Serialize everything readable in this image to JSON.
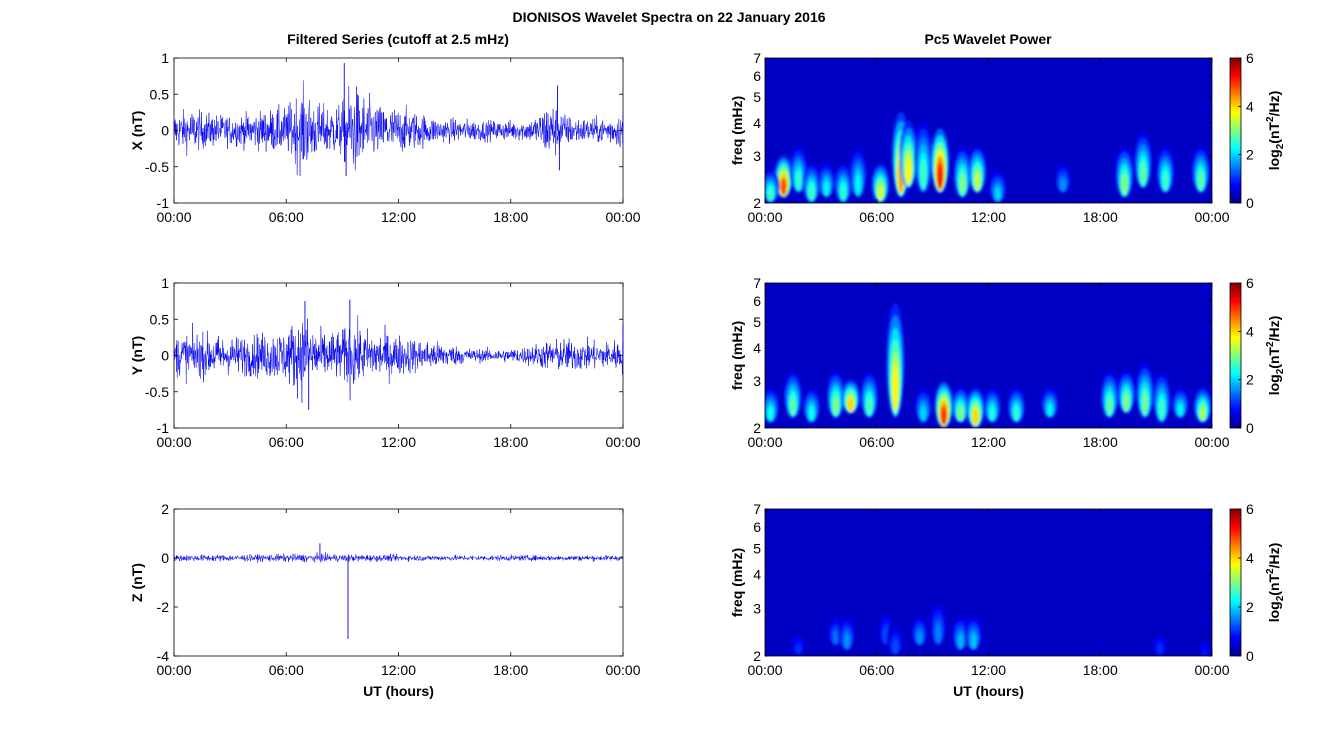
{
  "figure": {
    "title": "DIONISOS Wavelet Spectra on 22 January 2016",
    "left_title": "Filtered Series (cutoff at 2.5 mHz)",
    "right_title": "Pc5 Wavelet Power"
  },
  "colors": {
    "trace": "#0000ee",
    "axes": "#000000",
    "background": "#ffffff"
  },
  "chart_data": [
    {
      "type": "line",
      "id": "X",
      "ylabel": "X (nT)",
      "xlabel": "",
      "xticks": [
        "00:00",
        "06:00",
        "12:00",
        "18:00",
        "00:00"
      ],
      "xlim_hours": [
        0,
        24
      ],
      "ylim": [
        -1,
        1
      ],
      "yticks": [
        -1,
        -0.5,
        0,
        0.5,
        1
      ],
      "ytick_labels": [
        "-1",
        "-0.5",
        "0",
        "0.5",
        "1"
      ],
      "amplitude_envelope": [
        [
          0,
          0.22
        ],
        [
          1,
          0.25
        ],
        [
          2,
          0.2
        ],
        [
          3,
          0.18
        ],
        [
          4,
          0.2
        ],
        [
          5,
          0.25
        ],
        [
          6,
          0.28
        ],
        [
          6.6,
          0.45
        ],
        [
          7,
          0.5
        ],
        [
          7.5,
          0.35
        ],
        [
          8,
          0.3
        ],
        [
          9,
          0.33
        ],
        [
          9.5,
          0.6
        ],
        [
          10,
          0.45
        ],
        [
          11,
          0.3
        ],
        [
          12,
          0.28
        ],
        [
          13,
          0.22
        ],
        [
          14,
          0.15
        ],
        [
          15,
          0.14
        ],
        [
          16,
          0.13
        ],
        [
          17,
          0.12
        ],
        [
          18,
          0.12
        ],
        [
          19,
          0.13
        ],
        [
          19.5,
          0.2
        ],
        [
          20,
          0.35
        ],
        [
          20.5,
          0.3
        ],
        [
          21,
          0.18
        ],
        [
          22,
          0.15
        ],
        [
          23,
          0.15
        ],
        [
          24,
          0.22
        ]
      ],
      "notable_points": [
        {
          "time_hours": 9.1,
          "value": 0.93
        },
        {
          "time_hours": 9.2,
          "value": -0.63
        },
        {
          "time_hours": 20.5,
          "value": 0.62
        },
        {
          "time_hours": 20.6,
          "value": -0.55
        }
      ]
    },
    {
      "type": "line",
      "id": "Y",
      "ylabel": "Y (nT)",
      "xlabel": "",
      "xticks": [
        "00:00",
        "06:00",
        "12:00",
        "18:00",
        "00:00"
      ],
      "xlim_hours": [
        0,
        24
      ],
      "ylim": [
        -1,
        1
      ],
      "yticks": [
        -1,
        -0.5,
        0,
        0.5,
        1
      ],
      "ytick_labels": [
        "-1",
        "-0.5",
        "0",
        "0.5",
        "1"
      ],
      "amplitude_envelope": [
        [
          0,
          0.25
        ],
        [
          1,
          0.28
        ],
        [
          2,
          0.25
        ],
        [
          3,
          0.22
        ],
        [
          4,
          0.25
        ],
        [
          5,
          0.28
        ],
        [
          6,
          0.32
        ],
        [
          6.6,
          0.45
        ],
        [
          7,
          0.5
        ],
        [
          7.5,
          0.35
        ],
        [
          8,
          0.28
        ],
        [
          9,
          0.3
        ],
        [
          9.4,
          0.45
        ],
        [
          10,
          0.32
        ],
        [
          11,
          0.28
        ],
        [
          12,
          0.25
        ],
        [
          13,
          0.2
        ],
        [
          14,
          0.17
        ],
        [
          15,
          0.12
        ],
        [
          16,
          0.08
        ],
        [
          17,
          0.08
        ],
        [
          18,
          0.08
        ],
        [
          19,
          0.12
        ],
        [
          20,
          0.18
        ],
        [
          21,
          0.2
        ],
        [
          22,
          0.18
        ],
        [
          23,
          0.16
        ],
        [
          24,
          0.22
        ]
      ],
      "notable_points": [
        {
          "time_hours": 7.0,
          "value": 0.75
        },
        {
          "time_hours": 7.2,
          "value": -0.75
        },
        {
          "time_hours": 9.4,
          "value": 0.77
        },
        {
          "time_hours": 24.0,
          "value": 0.42
        }
      ]
    },
    {
      "type": "line",
      "id": "Z",
      "ylabel": "Z (nT)",
      "xlabel": "UT (hours)",
      "xticks": [
        "00:00",
        "06:00",
        "12:00",
        "18:00",
        "00:00"
      ],
      "xlim_hours": [
        0,
        24
      ],
      "ylim": [
        -4,
        2
      ],
      "yticks": [
        -4,
        -2,
        0,
        2
      ],
      "ytick_labels": [
        "-4",
        "-2",
        "0",
        "2"
      ],
      "amplitude_envelope": [
        [
          0,
          0.12
        ],
        [
          4,
          0.12
        ],
        [
          7,
          0.15
        ],
        [
          10,
          0.13
        ],
        [
          14,
          0.1
        ],
        [
          18,
          0.1
        ],
        [
          24,
          0.1
        ]
      ],
      "notable_points": [
        {
          "time_hours": 7.8,
          "value": 0.6
        },
        {
          "time_hours": 9.3,
          "value": -3.3
        }
      ]
    },
    {
      "type": "heatmap",
      "id": "X-power",
      "title": "Pc5 Wavelet Power",
      "ylabel": "freq (mHz)",
      "xlabel": "",
      "xticks": [
        "00:00",
        "06:00",
        "12:00",
        "18:00",
        "00:00"
      ],
      "xlim_hours": [
        0,
        24
      ],
      "yscale": "log",
      "ylim_mHz": [
        2,
        7
      ],
      "yticks": [
        "2",
        "3",
        "4",
        "5",
        "6",
        "7"
      ],
      "colorbar": {
        "label": "log2(nT²/Hz)",
        "range": [
          0,
          6
        ],
        "ticks": [
          "0",
          "2",
          "4",
          "6"
        ],
        "colormap": "jet"
      },
      "blobs": [
        {
          "t": 1.0,
          "f": 2.4,
          "peak": 4.8,
          "extent_mHz": 3.2
        },
        {
          "t": 0.3,
          "f": 2.3,
          "peak": 2.6,
          "extent_mHz": 2.8
        },
        {
          "t": 1.8,
          "f": 2.5,
          "peak": 2.5,
          "extent_mHz": 3.5
        },
        {
          "t": 2.5,
          "f": 2.3,
          "peak": 2.6,
          "extent_mHz": 3.0
        },
        {
          "t": 3.3,
          "f": 2.4,
          "peak": 2.2,
          "extent_mHz": 3.0
        },
        {
          "t": 4.2,
          "f": 2.3,
          "peak": 2.5,
          "extent_mHz": 3.0
        },
        {
          "t": 5.0,
          "f": 2.4,
          "peak": 2.2,
          "extent_mHz": 3.5
        },
        {
          "t": 6.2,
          "f": 2.3,
          "peak": 3.5,
          "extent_mHz": 3.0
        },
        {
          "t": 7.3,
          "f": 2.4,
          "peak": 4.3,
          "extent_mHz": 5.0
        },
        {
          "t": 7.7,
          "f": 2.6,
          "peak": 3.8,
          "extent_mHz": 4.5
        },
        {
          "t": 8.5,
          "f": 2.5,
          "peak": 2.6,
          "extent_mHz": 4.5
        },
        {
          "t": 9.4,
          "f": 2.5,
          "peak": 5.2,
          "extent_mHz": 4.2
        },
        {
          "t": 10.6,
          "f": 2.4,
          "peak": 3.0,
          "extent_mHz": 3.5
        },
        {
          "t": 11.4,
          "f": 2.5,
          "peak": 3.4,
          "extent_mHz": 3.5
        },
        {
          "t": 12.5,
          "f": 2.3,
          "peak": 2.0,
          "extent_mHz": 2.8
        },
        {
          "t": 16.0,
          "f": 2.5,
          "peak": 1.6,
          "extent_mHz": 3.0
        },
        {
          "t": 19.3,
          "f": 2.4,
          "peak": 3.0,
          "extent_mHz": 3.5
        },
        {
          "t": 20.3,
          "f": 2.6,
          "peak": 2.8,
          "extent_mHz": 4.0
        },
        {
          "t": 21.5,
          "f": 2.5,
          "peak": 2.6,
          "extent_mHz": 3.5
        },
        {
          "t": 23.4,
          "f": 2.5,
          "peak": 2.8,
          "extent_mHz": 3.5
        }
      ]
    },
    {
      "type": "heatmap",
      "id": "Y-power",
      "title": "",
      "ylabel": "freq (mHz)",
      "xlabel": "",
      "xticks": [
        "00:00",
        "06:00",
        "12:00",
        "18:00",
        "00:00"
      ],
      "xlim_hours": [
        0,
        24
      ],
      "yscale": "log",
      "ylim_mHz": [
        2,
        7
      ],
      "yticks": [
        "2",
        "3",
        "4",
        "5",
        "6",
        "7"
      ],
      "colorbar": {
        "label": "log2(nT²/Hz)",
        "range": [
          0,
          6
        ],
        "ticks": [
          "0",
          "2",
          "4",
          "6"
        ],
        "colormap": "jet"
      },
      "blobs": [
        {
          "t": 0.3,
          "f": 2.4,
          "peak": 2.3,
          "extent_mHz": 3.0
        },
        {
          "t": 1.5,
          "f": 2.5,
          "peak": 2.8,
          "extent_mHz": 3.5
        },
        {
          "t": 2.5,
          "f": 2.4,
          "peak": 2.3,
          "extent_mHz": 3.0
        },
        {
          "t": 3.8,
          "f": 2.5,
          "peak": 3.0,
          "extent_mHz": 3.5
        },
        {
          "t": 4.6,
          "f": 2.6,
          "peak": 4.0,
          "extent_mHz": 3.2
        },
        {
          "t": 5.6,
          "f": 2.5,
          "peak": 2.7,
          "extent_mHz": 3.5
        },
        {
          "t": 7.0,
          "f": 2.5,
          "peak": 3.8,
          "extent_mHz": 7.0
        },
        {
          "t": 8.5,
          "f": 2.4,
          "peak": 2.0,
          "extent_mHz": 3.0
        },
        {
          "t": 9.6,
          "f": 2.3,
          "peak": 5.0,
          "extent_mHz": 3.2
        },
        {
          "t": 10.5,
          "f": 2.4,
          "peak": 3.0,
          "extent_mHz": 3.0
        },
        {
          "t": 11.3,
          "f": 2.3,
          "peak": 4.0,
          "extent_mHz": 3.0
        },
        {
          "t": 12.2,
          "f": 2.4,
          "peak": 2.4,
          "extent_mHz": 3.0
        },
        {
          "t": 13.5,
          "f": 2.4,
          "peak": 2.5,
          "extent_mHz": 3.0
        },
        {
          "t": 15.3,
          "f": 2.5,
          "peak": 2.2,
          "extent_mHz": 3.0
        },
        {
          "t": 18.5,
          "f": 2.5,
          "peak": 2.8,
          "extent_mHz": 3.5
        },
        {
          "t": 19.4,
          "f": 2.6,
          "peak": 3.0,
          "extent_mHz": 3.5
        },
        {
          "t": 20.4,
          "f": 2.5,
          "peak": 2.9,
          "extent_mHz": 3.8
        },
        {
          "t": 21.3,
          "f": 2.4,
          "peak": 2.6,
          "extent_mHz": 3.5
        },
        {
          "t": 22.3,
          "f": 2.5,
          "peak": 2.2,
          "extent_mHz": 3.0
        },
        {
          "t": 23.5,
          "f": 2.4,
          "peak": 3.2,
          "extent_mHz": 3.0
        }
      ]
    },
    {
      "type": "heatmap",
      "id": "Z-power",
      "title": "",
      "ylabel": "freq (mHz)",
      "xlabel": "UT (hours)",
      "xticks": [
        "00:00",
        "06:00",
        "12:00",
        "18:00",
        "00:00"
      ],
      "xlim_hours": [
        0,
        24
      ],
      "yscale": "log",
      "ylim_mHz": [
        2,
        7
      ],
      "yticks": [
        "2",
        "3",
        "4",
        "5",
        "6",
        "7"
      ],
      "colorbar": {
        "label": "log2(nT²/Hz)",
        "range": [
          0,
          6
        ],
        "ticks": [
          "0",
          "2",
          "4",
          "6"
        ],
        "colormap": "jet"
      },
      "blobs": [
        {
          "t": 1.8,
          "f": 2.3,
          "peak": 1.0,
          "extent_mHz": 2.6
        },
        {
          "t": 3.8,
          "f": 2.5,
          "peak": 1.4,
          "extent_mHz": 3.0
        },
        {
          "t": 4.4,
          "f": 2.4,
          "peak": 1.6,
          "extent_mHz": 3.0
        },
        {
          "t": 6.5,
          "f": 2.5,
          "peak": 1.2,
          "extent_mHz": 3.2
        },
        {
          "t": 7.0,
          "f": 2.3,
          "peak": 1.2,
          "extent_mHz": 2.8
        },
        {
          "t": 8.3,
          "f": 2.5,
          "peak": 1.6,
          "extent_mHz": 3.0
        },
        {
          "t": 9.3,
          "f": 2.5,
          "peak": 1.5,
          "extent_mHz": 3.5
        },
        {
          "t": 10.5,
          "f": 2.4,
          "peak": 1.8,
          "extent_mHz": 3.0
        },
        {
          "t": 11.2,
          "f": 2.4,
          "peak": 1.9,
          "extent_mHz": 3.0
        },
        {
          "t": 21.2,
          "f": 2.3,
          "peak": 1.0,
          "extent_mHz": 2.6
        },
        {
          "t": 23.6,
          "f": 2.2,
          "peak": 0.8,
          "extent_mHz": 2.5
        }
      ]
    }
  ]
}
